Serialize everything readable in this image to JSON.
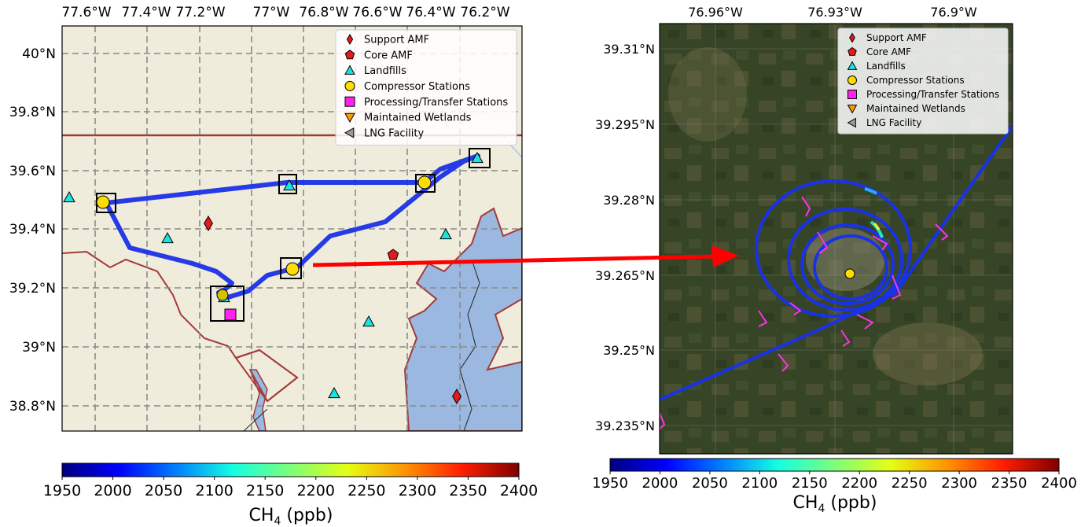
{
  "left_map": {
    "lon_ticks": [
      "77.6°W",
      "77.4°W",
      "77.2°W",
      "77°W",
      "76.8°W",
      "76.6°W",
      "76.4°W",
      "76.2°W"
    ],
    "lat_ticks": [
      "40°N",
      "39.8°N",
      "39.6°N",
      "39.4°N",
      "39.2°N",
      "39°N",
      "38.8°N"
    ],
    "legend": [
      {
        "label": "Support AMF",
        "marker": "diamond",
        "color": "#e41a1c"
      },
      {
        "label": "Core AMF",
        "marker": "pentagon",
        "color": "#e41a1c"
      },
      {
        "label": "Landfills",
        "marker": "triangle-up",
        "color": "#1fe0e0"
      },
      {
        "label": "Compressor Stations",
        "marker": "circle",
        "color": "#ffdd00"
      },
      {
        "label": "Processing/Transfer Stations",
        "marker": "square",
        "color": "#ff22ee"
      },
      {
        "label": "Maintained Wetlands",
        "marker": "triangle-down",
        "color": "#ff9900"
      },
      {
        "label": "LNG Facility",
        "marker": "triangle-left",
        "color": "#999999"
      }
    ],
    "colors": {
      "land": "#efecdc",
      "water": "#9ab8e0",
      "border": "#a33a3a",
      "track": "#1a32e6",
      "grid": "#8a8a8a"
    }
  },
  "right_map": {
    "lon_ticks": [
      "76.96°W",
      "76.93°W",
      "76.9°W"
    ],
    "lat_ticks": [
      "39.31°N",
      "39.295°N",
      "39.28°N",
      "39.265°N",
      "39.25°N",
      "39.235°N"
    ],
    "legend": [
      {
        "label": "Support AMF",
        "marker": "diamond",
        "color": "#e41a1c"
      },
      {
        "label": "Core AMF",
        "marker": "pentagon",
        "color": "#e41a1c"
      },
      {
        "label": "Landfills",
        "marker": "triangle-up",
        "color": "#1fe0e0"
      },
      {
        "label": "Compressor Stations",
        "marker": "circle",
        "color": "#ffdd00"
      },
      {
        "label": "Processing/Transfer Stations",
        "marker": "square",
        "color": "#ff22ee"
      },
      {
        "label": "Maintained Wetlands",
        "marker": "triangle-down",
        "color": "#ff9900"
      },
      {
        "label": "LNG Facility",
        "marker": "triangle-left",
        "color": "#999999"
      }
    ],
    "colors": {
      "imagery": "#3f4a2c",
      "track": "#1a32e6",
      "wind_barb": "#ff33dd"
    }
  },
  "colorbar": {
    "ticks": [
      "1950",
      "2000",
      "2050",
      "2100",
      "2150",
      "2200",
      "2250",
      "2300",
      "2350",
      "2400"
    ],
    "label_main": "CH",
    "label_sub": "4",
    "label_unit": " (ppb)",
    "colormap": [
      "#00007f",
      "#0000ff",
      "#0080ff",
      "#15ffe1",
      "#7dff7a",
      "#e4ff13",
      "#ff9400",
      "#ff1e00",
      "#7f0000"
    ]
  },
  "colors": {
    "arrow": "#ff0000"
  }
}
